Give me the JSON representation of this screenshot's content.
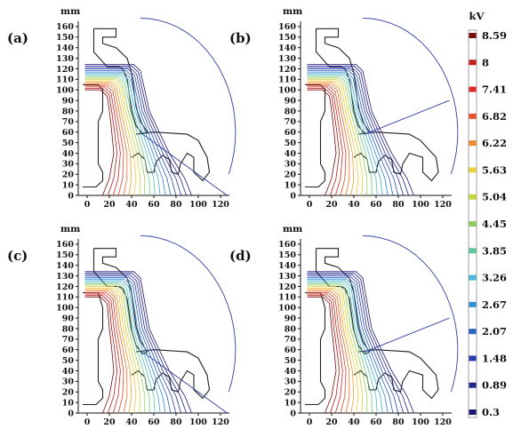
{
  "colorbar": {
    "unit": "kV",
    "labels": [
      "8.59",
      "8",
      "7.41",
      "6.82",
      "6.22",
      "5.63",
      "5.04",
      "4.45",
      "3.85",
      "3.26",
      "2.67",
      "2.07",
      "1.48",
      "0.89",
      "0.3"
    ],
    "colors": [
      "#7a0a0a",
      "#c81e1e",
      "#e02828",
      "#e8502e",
      "#f08a2a",
      "#f0d23a",
      "#c8d43a",
      "#8ccc5a",
      "#5cc89a",
      "#4ab8d8",
      "#2e96d8",
      "#2a64c4",
      "#2a3cb4",
      "#23238c",
      "#1a1a70"
    ]
  },
  "panels": [
    {
      "label": "(a)",
      "unit": "mm"
    },
    {
      "label": "(b)",
      "unit": "mm"
    },
    {
      "label": "(c)",
      "unit": "mm"
    },
    {
      "label": "(d)",
      "unit": "mm"
    }
  ],
  "y_ticks": [
    "160",
    "150",
    "140",
    "130",
    "120",
    "110",
    "100",
    "90",
    "80",
    "70",
    "60",
    "50",
    "40",
    "30",
    "20",
    "10",
    "0"
  ],
  "x_ticks": [
    "0",
    "20",
    "40",
    "60",
    "80",
    "100",
    "120"
  ]
}
